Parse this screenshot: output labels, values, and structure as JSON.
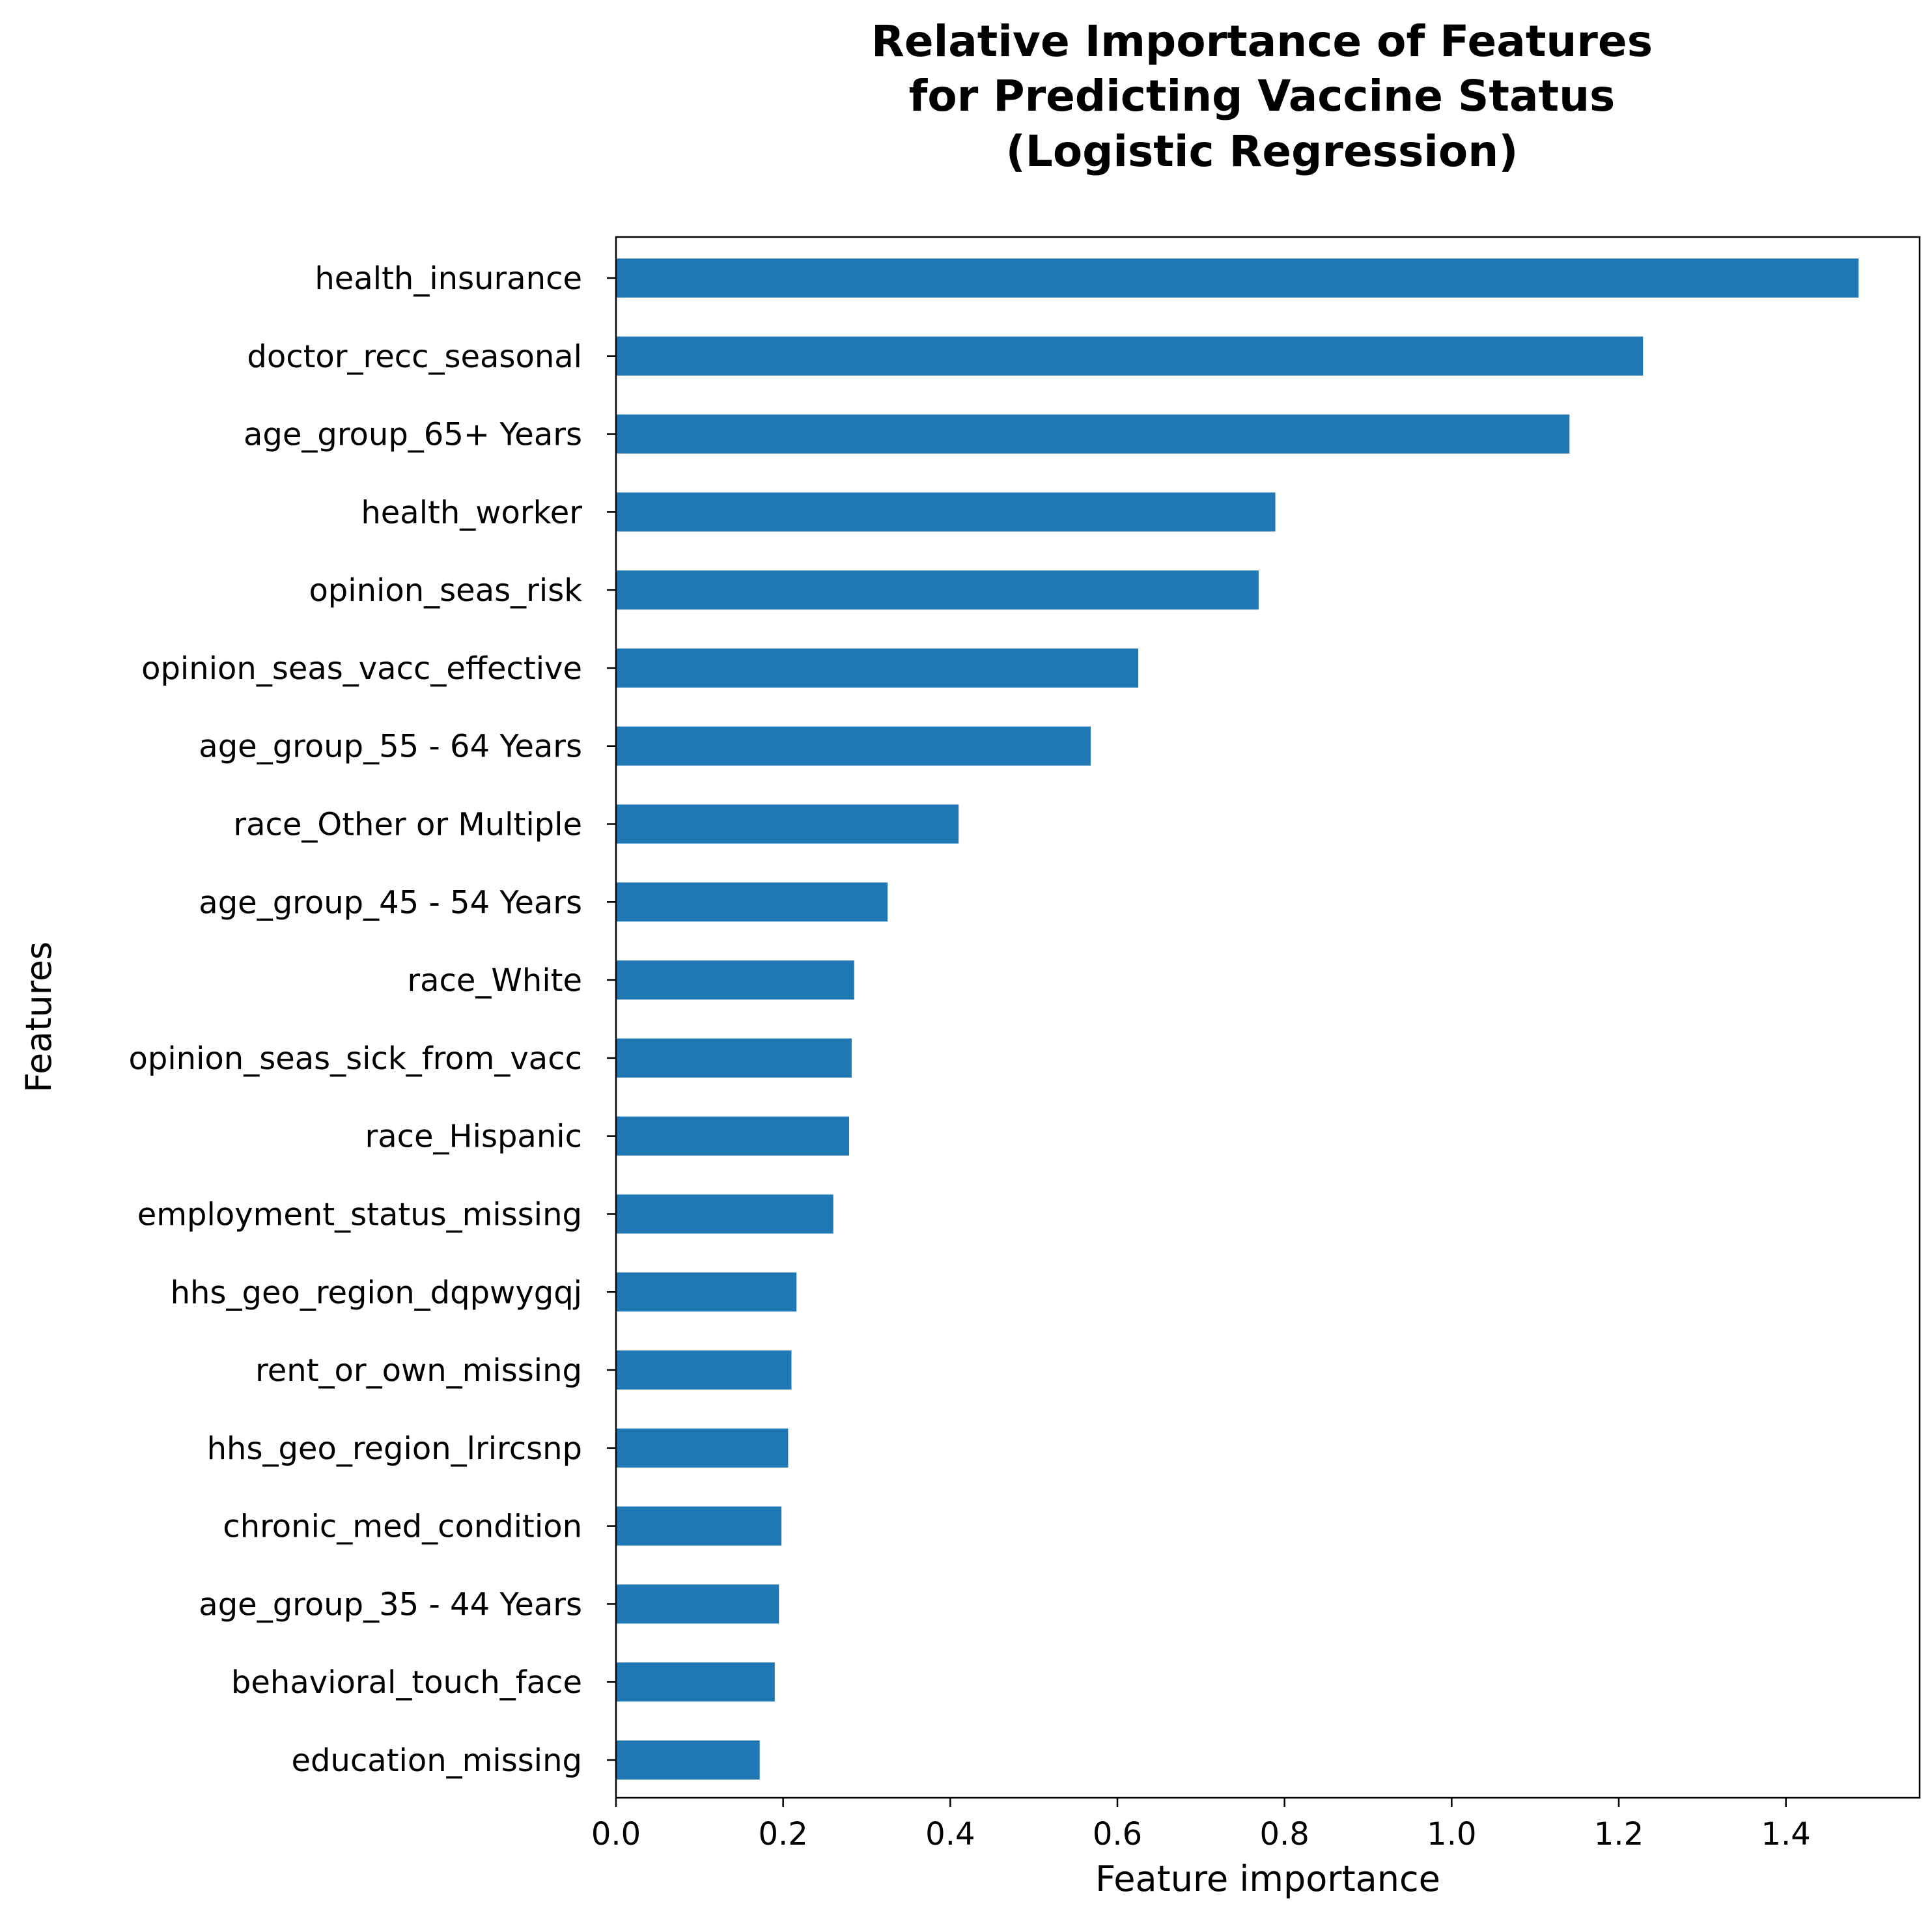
{
  "chart_data": {
    "type": "bar",
    "orientation": "horizontal",
    "title_lines": [
      "Relative Importance of Features",
      "for Predicting Vaccine Status",
      "(Logistic Regression)"
    ],
    "xlabel": "Feature importance",
    "ylabel": "Features",
    "xlim": [
      0,
      1.56
    ],
    "xticks": [
      0.0,
      0.2,
      0.4,
      0.6,
      0.8,
      1.0,
      1.2,
      1.4
    ],
    "xtick_labels": [
      "0.0",
      "0.2",
      "0.4",
      "0.6",
      "0.8",
      "1.0",
      "1.2",
      "1.4"
    ],
    "categories": [
      "health_insurance",
      "doctor_recc_seasonal",
      "age_group_65+ Years",
      "health_worker",
      "opinion_seas_risk",
      "opinion_seas_vacc_effective",
      "age_group_55 - 64 Years",
      "race_Other or Multiple",
      "age_group_45 - 54 Years",
      "race_White",
      "opinion_seas_sick_from_vacc",
      "race_Hispanic",
      "employment_status_missing",
      "hhs_geo_region_dqpwygqj",
      "rent_or_own_missing",
      "hhs_geo_region_lrircsnp",
      "chronic_med_condition",
      "age_group_35 - 44 Years",
      "behavioral_touch_face",
      "education_missing"
    ],
    "values": [
      1.487,
      1.229,
      1.141,
      0.789,
      0.769,
      0.625,
      0.568,
      0.41,
      0.325,
      0.285,
      0.282,
      0.279,
      0.26,
      0.216,
      0.21,
      0.206,
      0.198,
      0.195,
      0.19,
      0.172
    ],
    "bar_color": "#1f77b4",
    "grid": false,
    "legend": false
  }
}
